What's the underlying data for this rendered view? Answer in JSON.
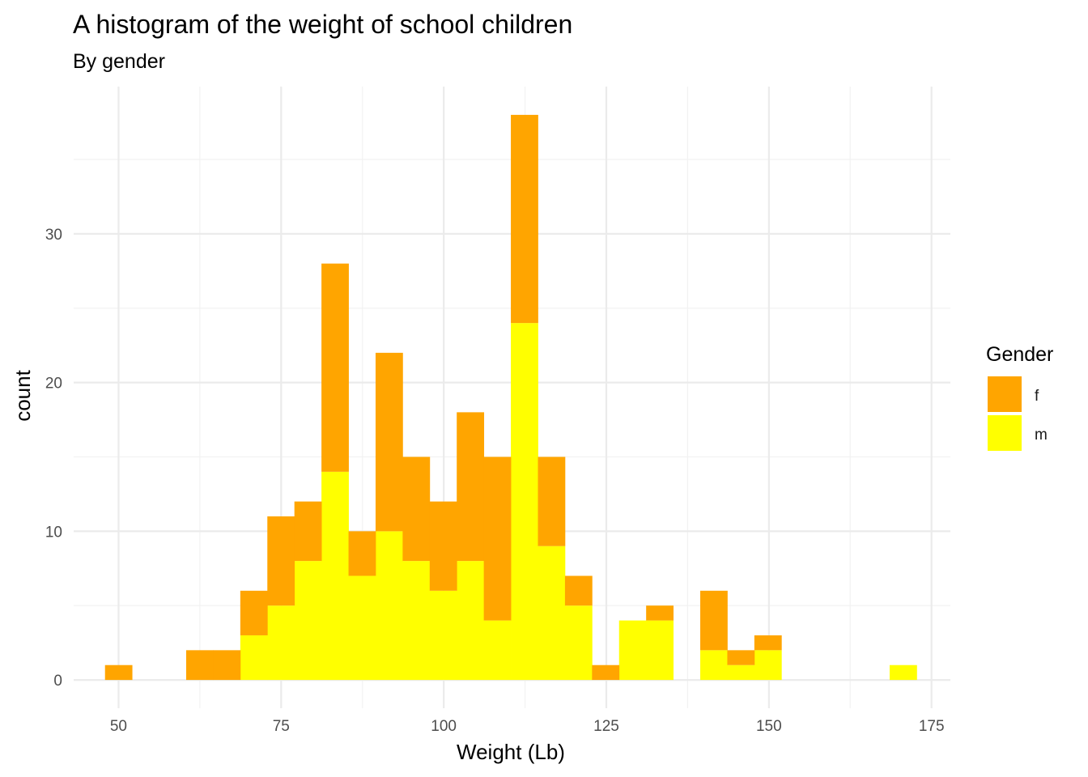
{
  "chart_data": {
    "type": "bar",
    "stacked": true,
    "title": "A histogram of the weight of school children",
    "subtitle": "By gender",
    "xlabel": "Weight (Lb)",
    "ylabel": "count",
    "xlim": [
      43.1,
      177.9
    ],
    "ylim": [
      -1.9,
      39.9
    ],
    "x_ticks": [
      50,
      75,
      100,
      125,
      150,
      175
    ],
    "y_ticks": [
      0,
      10,
      20,
      30
    ],
    "x_tick_labels": [
      "50",
      "75",
      "100",
      "125",
      "150",
      "175"
    ],
    "y_tick_labels": [
      "0",
      "10",
      "20",
      "30"
    ],
    "bin_width": 4.16,
    "bin_centers": [
      50.0,
      54.16,
      58.32,
      62.48,
      66.64,
      70.8,
      74.96,
      79.12,
      83.28,
      87.44,
      91.6,
      95.76,
      99.92,
      104.08,
      108.24,
      112.4,
      116.56,
      120.72,
      124.88,
      129.04,
      133.2,
      137.36,
      141.52,
      145.68,
      149.84,
      154.0,
      158.16,
      162.32,
      166.48,
      170.64
    ],
    "series": [
      {
        "name": "m",
        "color": "#ffff00",
        "values": [
          0,
          0,
          0,
          0,
          0,
          3,
          5,
          8,
          14,
          7,
          10,
          8,
          6,
          8,
          4,
          24,
          9,
          5,
          0,
          4,
          4,
          0,
          2,
          1,
          2,
          0,
          0,
          0,
          0,
          1
        ]
      },
      {
        "name": "f",
        "color": "#ffa500",
        "values": [
          1,
          0,
          0,
          2,
          2,
          3,
          6,
          4,
          14,
          3,
          12,
          7,
          6,
          10,
          11,
          14,
          6,
          2,
          1,
          0,
          1,
          0,
          4,
          1,
          1,
          0,
          0,
          0,
          0,
          0
        ]
      }
    ],
    "legend": {
      "title": "Gender",
      "position": "right",
      "items": [
        {
          "label": "f",
          "color": "#ffa500"
        },
        {
          "label": "m",
          "color": "#ffff00"
        }
      ]
    }
  }
}
